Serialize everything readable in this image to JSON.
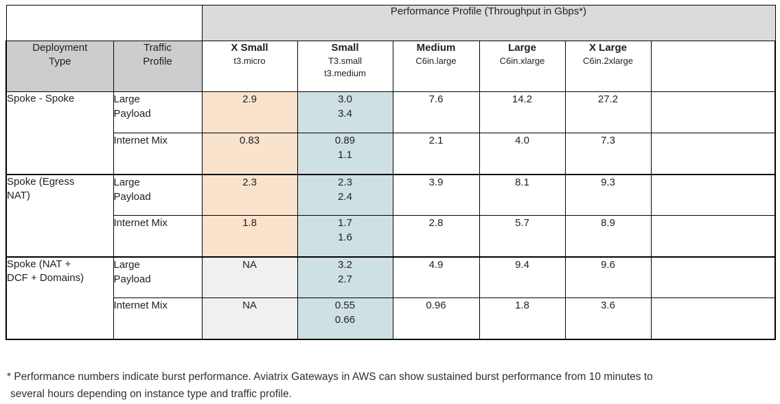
{
  "banner_title": "Performance Profile (Throughput in Gbps*)",
  "headers": {
    "corner": [
      {
        "id": "deployment-type",
        "lines": [
          "Deployment",
          "Type"
        ]
      },
      {
        "id": "traffic-profile",
        "lines": [
          "Traffic",
          "Profile"
        ]
      }
    ],
    "sizes": [
      {
        "id": "xsmall",
        "label": "X Small",
        "instances": [
          "t3.micro"
        ]
      },
      {
        "id": "small",
        "label": "Small",
        "instances": [
          "T3.small",
          "t3.medium"
        ]
      },
      {
        "id": "medium",
        "label": "Medium",
        "instances": [
          "C6in.large"
        ]
      },
      {
        "id": "large",
        "label": "Large",
        "instances": [
          "C6in.xlarge"
        ]
      },
      {
        "id": "xlarge",
        "label": "X Large",
        "instances": [
          "C6in.2xlarge"
        ]
      }
    ]
  },
  "groups": [
    {
      "deployment_lines": [
        "Spoke - Spoke"
      ],
      "rows": [
        {
          "traffic_lines": [
            "Large",
            "Payload"
          ],
          "values": [
            [
              "2.9"
            ],
            [
              "3.0",
              "3.4"
            ],
            [
              "7.6"
            ],
            [
              "14.2"
            ],
            [
              "27.2"
            ]
          ]
        },
        {
          "traffic_lines": [
            "Internet Mix"
          ],
          "values": [
            [
              "0.83"
            ],
            [
              "0.89",
              "1.1"
            ],
            [
              "2.1"
            ],
            [
              "4.0"
            ],
            [
              "7.3"
            ]
          ]
        }
      ]
    },
    {
      "deployment_lines": [
        "Spoke (Egress",
        "NAT)"
      ],
      "rows": [
        {
          "traffic_lines": [
            "Large",
            "Payload"
          ],
          "values": [
            [
              "2.3"
            ],
            [
              "2.3",
              "2.4"
            ],
            [
              "3.9"
            ],
            [
              "8.1"
            ],
            [
              "9.3"
            ]
          ]
        },
        {
          "traffic_lines": [
            "Internet Mix"
          ],
          "values": [
            [
              "1.8"
            ],
            [
              "1.7",
              "1.6"
            ],
            [
              "2.8"
            ],
            [
              "5.7"
            ],
            [
              "8.9"
            ]
          ]
        }
      ]
    },
    {
      "deployment_lines": [
        "Spoke (NAT +",
        "DCF + Domains)"
      ],
      "rows": [
        {
          "traffic_lines": [
            "Large",
            "Payload"
          ],
          "values": [
            [
              "NA"
            ],
            [
              "3.2",
              "2.7"
            ],
            [
              "4.9"
            ],
            [
              "9.4"
            ],
            [
              "9.6"
            ]
          ]
        },
        {
          "traffic_lines": [
            "Internet Mix"
          ],
          "values": [
            [
              "NA"
            ],
            [
              "0.55",
              "0.66"
            ],
            [
              "0.96"
            ],
            [
              "1.8"
            ],
            [
              "3.6"
            ]
          ]
        }
      ]
    }
  ],
  "footnote": {
    "line1": "* Performance numbers indicate burst performance. Aviatrix Gateways in AWS can show sustained burst performance from 10 minutes to",
    "line2": "several hours depending on instance type and traffic profile."
  },
  "colors": {
    "banner_bg": "#dbdbdb",
    "corner_header_bg": "#cdcdcd",
    "xsmall_bg": "#fae3cc",
    "small_bg": "#cfe0e3",
    "na_bg": "#f0f0f0",
    "border": "#000000",
    "text": "#1f1f1f"
  }
}
